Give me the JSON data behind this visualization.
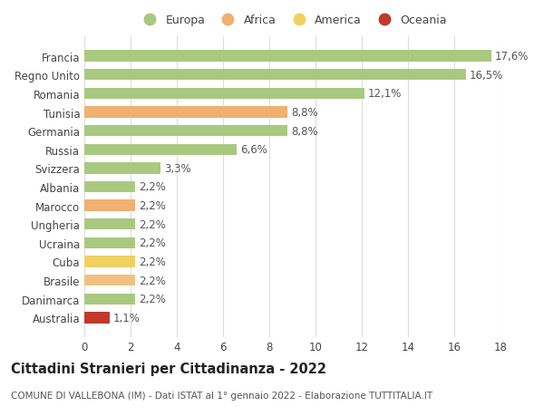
{
  "categories": [
    "Australia",
    "Danimarca",
    "Brasile",
    "Cuba",
    "Ucraina",
    "Ungheria",
    "Marocco",
    "Albania",
    "Svizzera",
    "Russia",
    "Germania",
    "Tunisia",
    "Romania",
    "Regno Unito",
    "Francia"
  ],
  "values": [
    1.1,
    2.2,
    2.2,
    2.2,
    2.2,
    2.2,
    2.2,
    2.2,
    3.3,
    6.6,
    8.8,
    8.8,
    12.1,
    16.5,
    17.6
  ],
  "colors": [
    "#c0392b",
    "#a8c97f",
    "#f0c080",
    "#f0d060",
    "#a8c97f",
    "#a8c97f",
    "#f0b070",
    "#a8c97f",
    "#a8c97f",
    "#a8c97f",
    "#a8c97f",
    "#f0b070",
    "#a8c97f",
    "#a8c97f",
    "#a8c97f"
  ],
  "labels": [
    "1,1%",
    "2,2%",
    "2,2%",
    "2,2%",
    "2,2%",
    "2,2%",
    "2,2%",
    "2,2%",
    "3,3%",
    "6,6%",
    "8,8%",
    "8,8%",
    "12,1%",
    "16,5%",
    "17,6%"
  ],
  "legend": [
    {
      "label": "Europa",
      "color": "#a8c97f"
    },
    {
      "label": "Africa",
      "color": "#f0b070"
    },
    {
      "label": "America",
      "color": "#f0d060"
    },
    {
      "label": "Oceania",
      "color": "#c0392b"
    }
  ],
  "title": "Cittadini Stranieri per Cittadinanza - 2022",
  "subtitle": "COMUNE DI VALLEBONA (IM) - Dati ISTAT al 1° gennaio 2022 - Elaborazione TUTTITALIA.IT",
  "xlim": [
    0,
    18
  ],
  "xticks": [
    0,
    2,
    4,
    6,
    8,
    10,
    12,
    14,
    16,
    18
  ],
  "background_color": "#ffffff",
  "grid_color": "#dddddd",
  "bar_height": 0.6,
  "title_fontsize": 10.5,
  "subtitle_fontsize": 7.5,
  "tick_fontsize": 8.5,
  "label_fontsize": 8.5,
  "legend_fontsize": 9
}
